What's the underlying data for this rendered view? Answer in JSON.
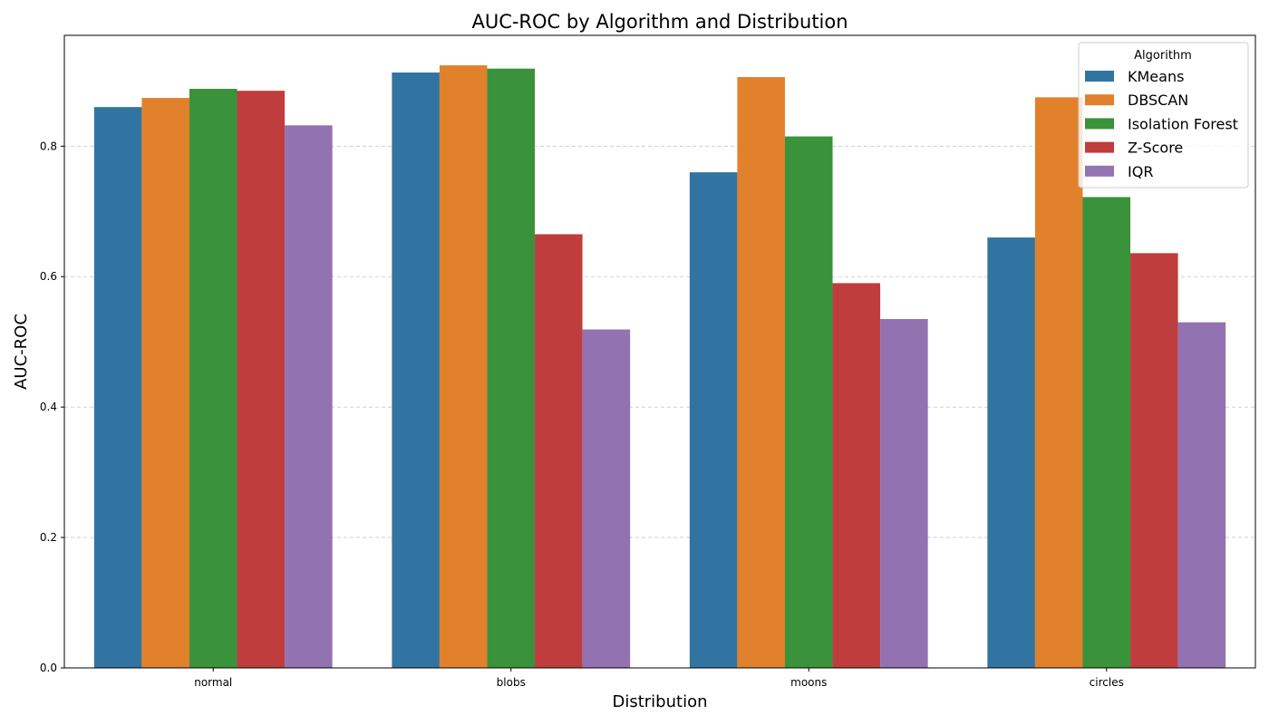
{
  "chart_data": {
    "type": "bar",
    "title": "AUC-ROC by Algorithm and Distribution",
    "xlabel": "Distribution",
    "ylabel": "AUC-ROC",
    "categories": [
      "normal",
      "blobs",
      "moons",
      "circles"
    ],
    "ylim": [
      0,
      0.97
    ],
    "yticks": [
      "0.0",
      "0.2",
      "0.4",
      "0.6",
      "0.8"
    ],
    "grid": "y-dashed",
    "legend": {
      "title": "Algorithm",
      "placement": "top-right"
    },
    "series": [
      {
        "name": "KMeans",
        "color": "#3274a1",
        "values": [
          0.86,
          0.913,
          0.76,
          0.66
        ]
      },
      {
        "name": "DBSCAN",
        "color": "#e1812c",
        "values": [
          0.874,
          0.924,
          0.906,
          0.875
        ]
      },
      {
        "name": "Isolation Forest",
        "color": "#3a923a",
        "values": [
          0.888,
          0.919,
          0.815,
          0.722
        ]
      },
      {
        "name": "Z-Score",
        "color": "#c03d3e",
        "values": [
          0.885,
          0.665,
          0.59,
          0.636
        ]
      },
      {
        "name": "IQR",
        "color": "#9372b2",
        "values": [
          0.832,
          0.519,
          0.535,
          0.53
        ]
      }
    ]
  }
}
